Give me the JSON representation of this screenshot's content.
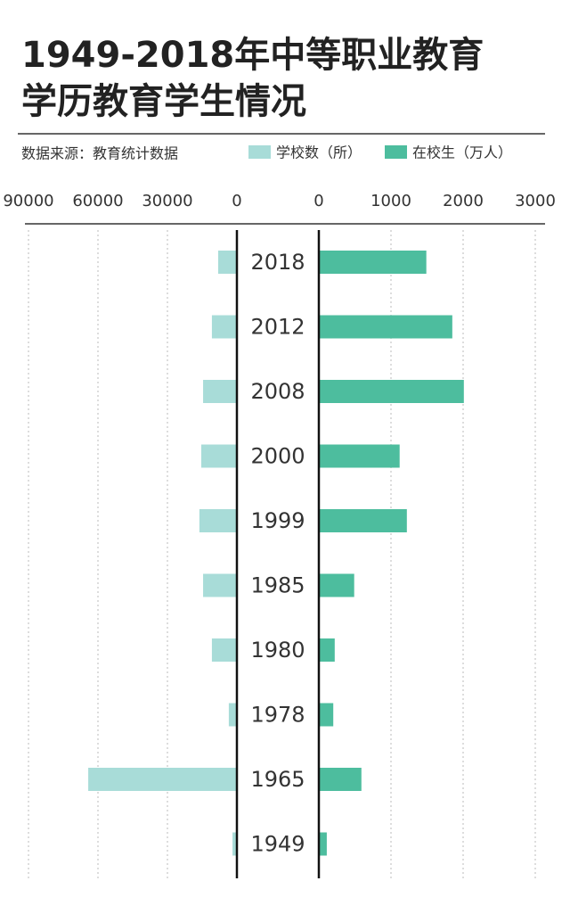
{
  "chart_data": {
    "type": "butterfly",
    "title": "1949-2018年中等职业教育学历教育学生情况",
    "source": "数据来源：教育统计数据",
    "categories": [
      "2018",
      "2012",
      "2008",
      "2000",
      "1999",
      "1985",
      "1980",
      "1978",
      "1965",
      "1949"
    ],
    "series": [
      {
        "name": "学校数（所）",
        "color": "#a8dcd8",
        "side": "left",
        "values": [
          8100,
          10800,
          14600,
          15400,
          16200,
          14600,
          10800,
          3500,
          64200,
          1900
        ],
        "xlim": [
          0,
          90000
        ],
        "xticks": [
          90000,
          60000,
          30000,
          0
        ]
      },
      {
        "name": "在校生（万人）",
        "color": "#4dbd9e",
        "side": "right",
        "values": [
          1490,
          1850,
          2010,
          1120,
          1220,
          490,
          220,
          200,
          590,
          110
        ],
        "xlim": [
          0,
          3000
        ],
        "xticks": [
          0,
          1000,
          2000,
          3000
        ]
      }
    ],
    "grid": true
  }
}
